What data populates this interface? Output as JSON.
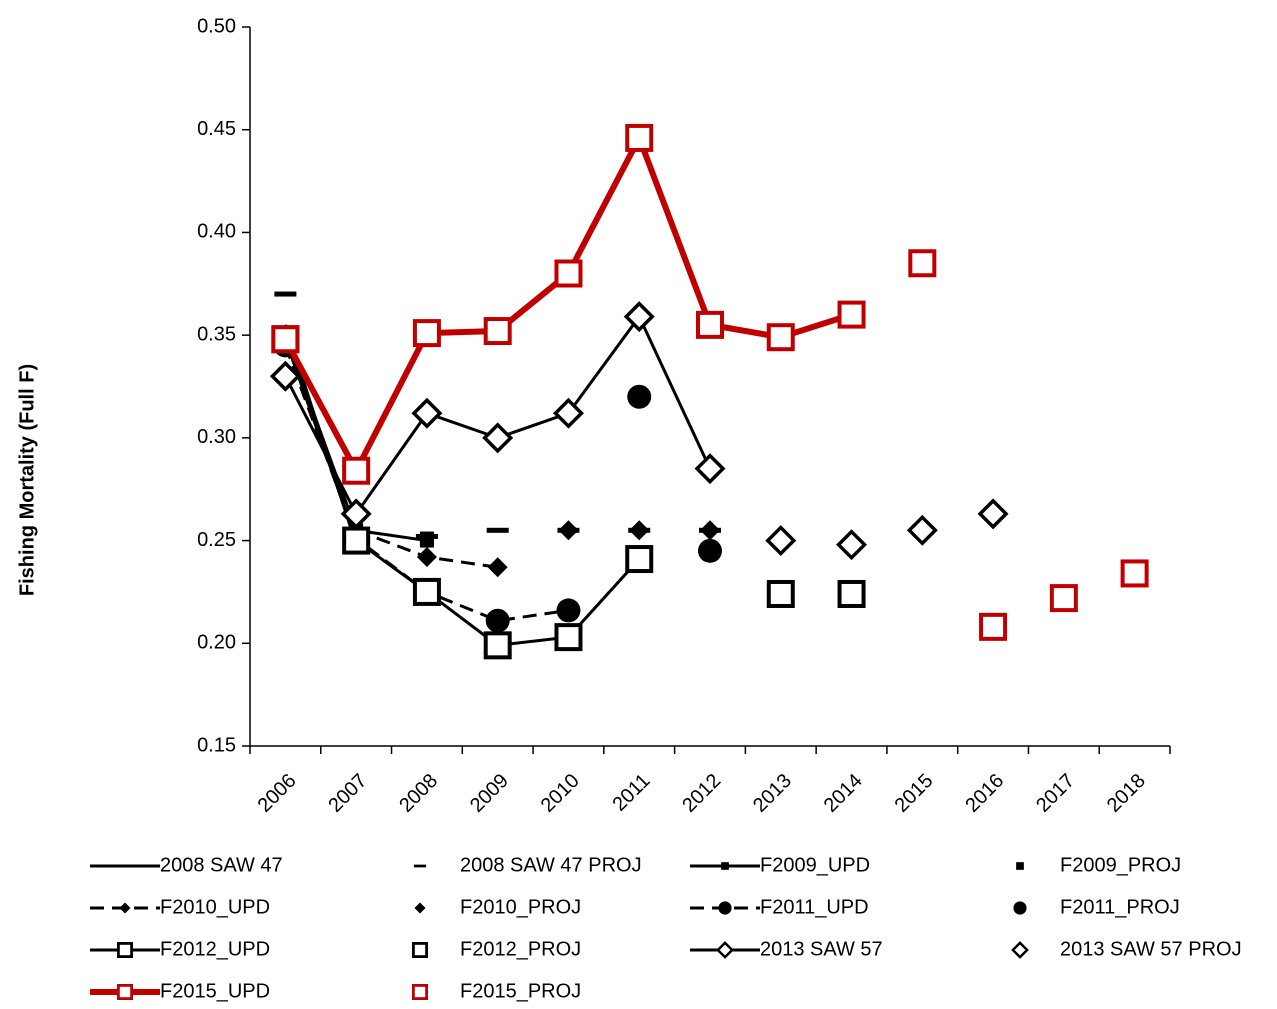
{
  "chart_data": {
    "type": "line",
    "y_label": "Fishing Mortality (Full F)",
    "categories": [
      "2006",
      "2007",
      "2008",
      "2009",
      "2010",
      "2011",
      "2012",
      "2013",
      "2014",
      "2015",
      "2016",
      "2017",
      "2018"
    ],
    "ylim": [
      0.15,
      0.5
    ],
    "yticks": [
      0.15,
      {
        "value": 0.2,
        "label": "0.20"
      },
      0.25,
      {
        "value": 0.3,
        "label": "0.30"
      },
      0.35,
      {
        "value": 0.4,
        "label": "0.40"
      },
      0.45,
      {
        "value": 0.5,
        "label": "0.50"
      }
    ],
    "grid": false,
    "legend": "bottom",
    "series": [
      {
        "name": "2008 SAW 47",
        "color": "#000000",
        "line": "solid",
        "marker": "none",
        "values": [
          0.355,
          0.248,
          null,
          null,
          null,
          null,
          null,
          null,
          null,
          null,
          null,
          null,
          null
        ]
      },
      {
        "name": "2008 SAW 47 PROJ",
        "color": "#000000",
        "line": "none",
        "marker": "dash",
        "values": [
          0.37,
          null,
          0.252,
          0.255,
          0.255,
          0.255,
          0.255,
          null,
          null,
          null,
          null,
          null,
          null
        ]
      },
      {
        "name": "F2009_UPD",
        "color": "#000000",
        "line": "solid",
        "marker": "small-square",
        "values": [
          0.35,
          0.255,
          0.25,
          null,
          null,
          null,
          null,
          null,
          null,
          null,
          null,
          null,
          null
        ]
      },
      {
        "name": "F2009_PROJ",
        "color": "#000000",
        "line": "none",
        "marker": "small-square",
        "values": [
          null,
          null,
          0.251,
          null,
          null,
          null,
          null,
          null,
          null,
          null,
          null,
          null,
          null
        ]
      },
      {
        "name": "F2010_UPD",
        "color": "#000000",
        "line": "dashed",
        "marker": "diamond",
        "values": [
          0.345,
          0.255,
          0.242,
          0.237,
          null,
          null,
          null,
          null,
          null,
          null,
          null,
          null,
          null
        ]
      },
      {
        "name": "F2010_PROJ",
        "color": "#000000",
        "line": "none",
        "marker": "diamond",
        "values": [
          null,
          null,
          null,
          null,
          0.255,
          0.255,
          0.255,
          null,
          null,
          null,
          null,
          null,
          null
        ]
      },
      {
        "name": "F2011_UPD",
        "color": "#000000",
        "line": "dashed",
        "marker": "circle",
        "values": [
          0.345,
          0.251,
          0.225,
          0.211,
          0.216,
          null,
          null,
          null,
          null,
          null,
          null,
          null,
          null
        ]
      },
      {
        "name": "F2011_PROJ",
        "color": "#000000",
        "line": "none",
        "marker": "circle",
        "values": [
          null,
          null,
          null,
          null,
          null,
          0.32,
          0.245,
          null,
          null,
          null,
          null,
          null,
          null
        ]
      },
      {
        "name": "F2012_UPD",
        "color": "#000000",
        "line": "solid",
        "marker": "open-square",
        "values": [
          0.348,
          0.25,
          0.225,
          0.199,
          0.203,
          0.241,
          null,
          null,
          null,
          null,
          null,
          null,
          null
        ]
      },
      {
        "name": "F2012_PROJ",
        "color": "#000000",
        "line": "none",
        "marker": "open-square",
        "values": [
          null,
          null,
          null,
          null,
          null,
          null,
          null,
          0.224,
          0.224,
          null,
          null,
          null,
          null
        ]
      },
      {
        "name": "2013 SAW 57",
        "color": "#000000",
        "line": "solid",
        "marker": "open-diamond",
        "values": [
          0.33,
          0.263,
          0.312,
          0.3,
          0.312,
          0.359,
          0.285,
          null,
          null,
          null,
          null,
          null,
          null
        ]
      },
      {
        "name": "2013 SAW 57 PROJ",
        "color": "#000000",
        "line": "none",
        "marker": "open-diamond",
        "values": [
          null,
          null,
          null,
          null,
          null,
          null,
          null,
          0.25,
          0.248,
          0.255,
          0.263,
          null,
          null
        ]
      },
      {
        "name": "F2015_UPD",
        "color": "#c00000",
        "line": "thick",
        "marker": "open-square",
        "values": [
          0.348,
          0.284,
          0.351,
          0.352,
          0.38,
          0.446,
          0.355,
          0.349,
          0.36,
          null,
          null,
          null,
          null
        ]
      },
      {
        "name": "F2015_PROJ",
        "color": "#c00000",
        "line": "none",
        "marker": "open-square",
        "values": [
          null,
          null,
          null,
          null,
          null,
          null,
          null,
          null,
          null,
          0.385,
          0.208,
          0.222,
          0.234
        ]
      }
    ]
  }
}
